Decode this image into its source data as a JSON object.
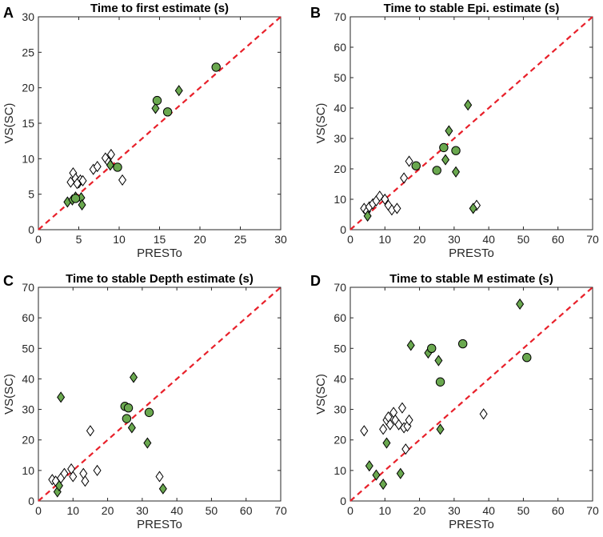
{
  "colors": {
    "green": "#6aa84f",
    "open": "#ffffff",
    "edge": "#000000",
    "identity": "#e8202a",
    "axis": "#262626"
  },
  "chart_data": [
    {
      "type": "scatter",
      "letter": "A",
      "title": "Time to first estimate (s)",
      "xlabel": "PRESTo",
      "ylabel": "VS(SC)",
      "xlim": [
        0,
        30
      ],
      "ylim": [
        0,
        30
      ],
      "xticks": [
        "0",
        "5",
        "10",
        "15",
        "20",
        "25",
        "30"
      ],
      "yticks": [
        "0",
        "5",
        "10",
        "15",
        "20",
        "25",
        "30"
      ],
      "identity_line": true,
      "series": [
        {
          "name": "open-diamond",
          "marker": "diamond",
          "fill": "open",
          "x": [
            4.3,
            4.0,
            4.6,
            5.0,
            5.2,
            5.5,
            6.8,
            7.3,
            8.3,
            8.7,
            9.0,
            10.4,
            4.8
          ],
          "y": [
            8.0,
            6.7,
            7.2,
            6.6,
            7.0,
            6.9,
            8.5,
            8.9,
            10.1,
            9.5,
            10.6,
            7.0,
            6.5
          ]
        },
        {
          "name": "green-diamond",
          "marker": "diamond",
          "fill": "green",
          "x": [
            3.6,
            4.2,
            4.6,
            5.3,
            5.4,
            8.9,
            14.5,
            17.4
          ],
          "y": [
            3.9,
            4.2,
            4.6,
            4.5,
            3.5,
            9.1,
            17.1,
            19.6
          ]
        },
        {
          "name": "green-circle",
          "marker": "circle",
          "fill": "green",
          "x": [
            4.6,
            9.8,
            14.7,
            16.0,
            22.0
          ],
          "y": [
            4.4,
            8.8,
            18.2,
            16.6,
            22.9
          ]
        }
      ]
    },
    {
      "type": "scatter",
      "letter": "B",
      "title": "Time to stable Epi. estimate (s)",
      "xlabel": "PRESTo",
      "ylabel": "VS(SC)",
      "xlim": [
        0,
        70
      ],
      "ylim": [
        0,
        70
      ],
      "xticks": [
        "0",
        "10",
        "20",
        "30",
        "40",
        "50",
        "60",
        "70"
      ],
      "yticks": [
        "0",
        "10",
        "20",
        "30",
        "40",
        "50",
        "60",
        "70"
      ],
      "identity_line": true,
      "series": [
        {
          "name": "open-diamond",
          "marker": "diamond",
          "fill": "open",
          "x": [
            4.0,
            4.8,
            5.5,
            6.5,
            7.5,
            8.5,
            10.0,
            11.0,
            12.0,
            13.5,
            15.5,
            17.0,
            36.5
          ],
          "y": [
            7.0,
            6.0,
            7.5,
            8.5,
            9.5,
            11.0,
            10.0,
            8.0,
            6.5,
            7.0,
            17.0,
            22.5,
            8.0
          ]
        },
        {
          "name": "green-diamond",
          "marker": "diamond",
          "fill": "green",
          "x": [
            5.0,
            27.5,
            28.5,
            30.5,
            34.0,
            35.5
          ],
          "y": [
            4.5,
            23.0,
            32.5,
            19.0,
            41.0,
            7.0
          ]
        },
        {
          "name": "green-circle",
          "marker": "circle",
          "fill": "green",
          "x": [
            19.0,
            25.0,
            27.0,
            30.5
          ],
          "y": [
            21.0,
            19.5,
            27.0,
            26.0
          ]
        }
      ]
    },
    {
      "type": "scatter",
      "letter": "C",
      "title": "Time to stable Depth estimate (s)",
      "xlabel": "PRESTo",
      "ylabel": "VS(SC)",
      "xlim": [
        0,
        70
      ],
      "ylim": [
        0,
        70
      ],
      "xticks": [
        "0",
        "10",
        "20",
        "30",
        "40",
        "50",
        "60",
        "70"
      ],
      "yticks": [
        "0",
        "10",
        "20",
        "30",
        "40",
        "50",
        "60",
        "70"
      ],
      "identity_line": true,
      "series": [
        {
          "name": "open-diamond",
          "marker": "diamond",
          "fill": "open",
          "x": [
            4.0,
            5.0,
            6.5,
            7.5,
            9.5,
            10.0,
            13.0,
            13.5,
            15.0,
            17.0,
            35.0
          ],
          "y": [
            7.0,
            6.5,
            7.5,
            9.0,
            10.5,
            8.0,
            9.0,
            6.5,
            23.0,
            10.0,
            8.0
          ]
        },
        {
          "name": "green-diamond",
          "marker": "diamond",
          "fill": "green",
          "x": [
            5.5,
            6.0,
            6.5,
            27.0,
            27.5,
            31.5,
            36.0
          ],
          "y": [
            3.0,
            5.0,
            34.0,
            24.0,
            40.5,
            19.0,
            4.0
          ]
        },
        {
          "name": "green-circle",
          "marker": "circle",
          "fill": "green",
          "x": [
            25.0,
            25.5,
            26.0,
            32.0
          ],
          "y": [
            31.0,
            27.0,
            30.5,
            29.0
          ]
        }
      ]
    },
    {
      "type": "scatter",
      "letter": "D",
      "title": "Time to stable M estimate (s)",
      "xlabel": "PRESTo",
      "ylabel": "VS(SC)",
      "xlim": [
        0,
        70
      ],
      "ylim": [
        0,
        70
      ],
      "xticks": [
        "0",
        "10",
        "20",
        "30",
        "40",
        "50",
        "60",
        "70"
      ],
      "yticks": [
        "0",
        "10",
        "20",
        "30",
        "40",
        "50",
        "60",
        "70"
      ],
      "identity_line": true,
      "series": [
        {
          "name": "open-diamond",
          "marker": "diamond",
          "fill": "open",
          "x": [
            4.0,
            9.5,
            10.5,
            11.0,
            11.5,
            12.5,
            13.0,
            14.0,
            15.0,
            15.5,
            16.0,
            16.5,
            17.0,
            38.5
          ],
          "y": [
            23.0,
            23.5,
            26.5,
            27.5,
            25.0,
            29.0,
            26.5,
            25.0,
            30.5,
            24.0,
            17.0,
            24.5,
            26.5,
            28.5
          ]
        },
        {
          "name": "green-diamond",
          "marker": "diamond",
          "fill": "green",
          "x": [
            5.5,
            7.5,
            9.5,
            10.5,
            14.5,
            17.5,
            22.5,
            25.5,
            26.0,
            49.0
          ],
          "y": [
            11.5,
            8.5,
            5.5,
            19.0,
            9.0,
            51.0,
            48.5,
            46.0,
            23.5,
            64.5
          ]
        },
        {
          "name": "green-circle",
          "marker": "circle",
          "fill": "green",
          "x": [
            23.5,
            26.0,
            32.5,
            51.0
          ],
          "y": [
            50.0,
            39.0,
            51.5,
            47.0
          ]
        }
      ]
    }
  ]
}
